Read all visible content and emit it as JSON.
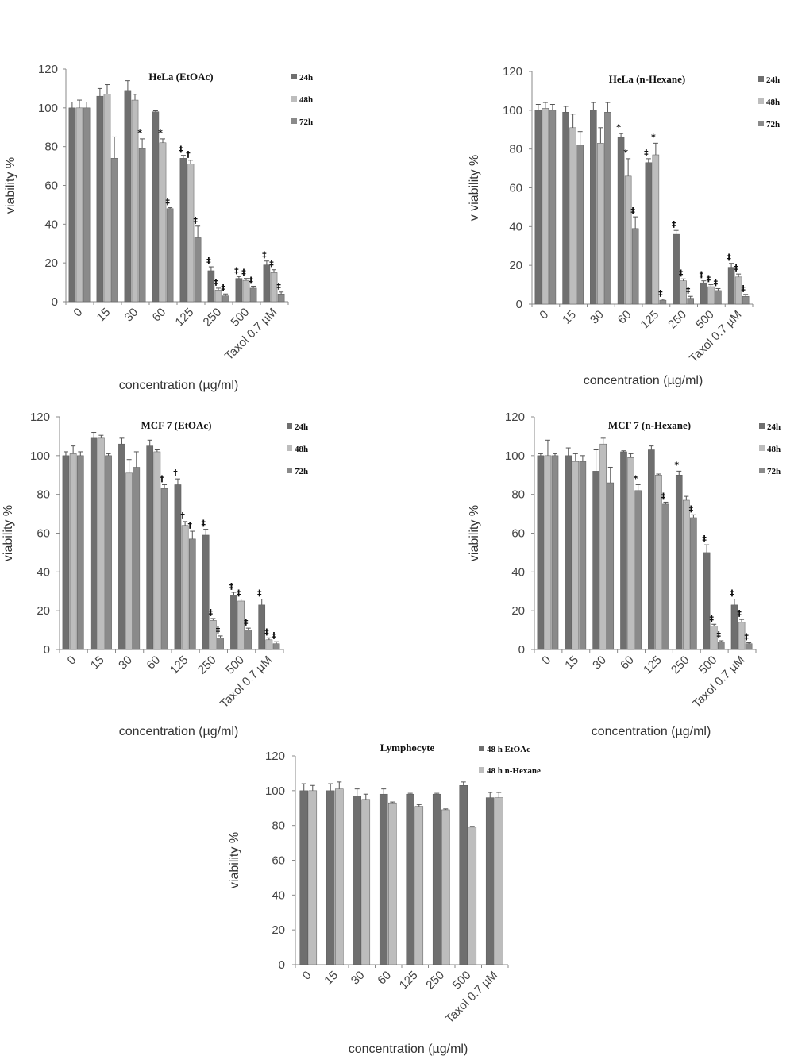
{
  "colors": {
    "24h": "#6f6f6f",
    "48h": "#bdbdbd",
    "72h": "#8a8a8a"
  },
  "chart_data": [
    {
      "type": "bar",
      "title": "HeLa (EtOAc)",
      "xlabel": "concentration (µg/ml)",
      "ylabel": "viability %",
      "ylim": [
        0,
        120
      ],
      "yticks": [
        0,
        20,
        40,
        60,
        80,
        100,
        120
      ],
      "categories": [
        "0",
        "15",
        "30",
        "60",
        "125",
        "250",
        "500",
        "Taxol 0.7 µM"
      ],
      "legend": "top-right",
      "series": [
        {
          "name": "24h",
          "color_key": "24h",
          "values": [
            100,
            106,
            109,
            98,
            74,
            16,
            12,
            19
          ],
          "errors": [
            3,
            4,
            5,
            0.5,
            1.5,
            2,
            1,
            2
          ],
          "marks": [
            "",
            "",
            "",
            "",
            "‡",
            "‡",
            "‡",
            "‡"
          ]
        },
        {
          "name": "48h",
          "color_key": "48h",
          "values": [
            100,
            107,
            104,
            82,
            71,
            6,
            11,
            15
          ],
          "errors": [
            4,
            5,
            3,
            2,
            2,
            1,
            1,
            1.5
          ],
          "marks": [
            "",
            "",
            "",
            "*",
            "†",
            "‡",
            "‡",
            "‡"
          ]
        },
        {
          "name": "72h",
          "color_key": "72h",
          "values": [
            100,
            74,
            79,
            48,
            33,
            3,
            7,
            4
          ],
          "errors": [
            3,
            11,
            5,
            0.5,
            6,
            1,
            1,
            1
          ],
          "marks": [
            "",
            "",
            "*",
            "‡",
            "‡",
            "‡",
            "‡",
            "‡"
          ]
        }
      ]
    },
    {
      "type": "bar",
      "title": "HeLa (n-Hexane)",
      "xlabel": "concentration (µg/ml)",
      "ylabel": "v viability %",
      "ylim": [
        0,
        120
      ],
      "yticks": [
        0,
        20,
        40,
        60,
        80,
        100,
        120
      ],
      "categories": [
        "0",
        "15",
        "30",
        "60",
        "125",
        "250",
        "500",
        "Taxol 0.7 µM"
      ],
      "legend": "top-right",
      "series": [
        {
          "name": "24h",
          "color_key": "24h",
          "values": [
            100,
            99,
            100,
            86,
            73,
            36,
            11,
            19
          ],
          "errors": [
            3,
            3,
            4,
            2,
            2,
            2,
            1,
            2
          ],
          "marks": [
            "",
            "",
            "",
            "*",
            "‡",
            "‡",
            "‡",
            "‡"
          ]
        },
        {
          "name": "48h",
          "color_key": "48h",
          "values": [
            101,
            91,
            83,
            66,
            77,
            12,
            9,
            14
          ],
          "errors": [
            3,
            7,
            8,
            9,
            6,
            1,
            1,
            1.5
          ],
          "marks": [
            "",
            "",
            "",
            "*",
            "*",
            "‡",
            "‡",
            "‡"
          ]
        },
        {
          "name": "72h",
          "color_key": "72h",
          "values": [
            100,
            82,
            99,
            39,
            2,
            3,
            7,
            4
          ],
          "errors": [
            3,
            7,
            5,
            6,
            0.5,
            1,
            1,
            1
          ],
          "marks": [
            "",
            "",
            "",
            "‡",
            "‡",
            "‡",
            "‡",
            "‡"
          ]
        }
      ]
    },
    {
      "type": "bar",
      "title": "MCF 7 (EtOAc)",
      "xlabel": "concentration (µg/ml)",
      "ylabel": "viability %",
      "ylim": [
        0,
        120
      ],
      "yticks": [
        0,
        20,
        40,
        60,
        80,
        100,
        120
      ],
      "categories": [
        "0",
        "15",
        "30",
        "60",
        "125",
        "250",
        "500",
        "Taxol 0.7 µM"
      ],
      "legend": "top-right",
      "series": [
        {
          "name": "24h",
          "color_key": "24h",
          "values": [
            100,
            109,
            106,
            105,
            85,
            59,
            28,
            23
          ],
          "errors": [
            2,
            3,
            3,
            3,
            3,
            3,
            1.5,
            3
          ],
          "marks": [
            "",
            "",
            "",
            "",
            "†",
            "‡",
            "‡",
            "‡"
          ]
        },
        {
          "name": "48h",
          "color_key": "48h",
          "values": [
            101,
            109,
            91,
            102,
            64,
            15,
            25,
            5
          ],
          "errors": [
            4,
            1.5,
            7,
            1,
            2,
            1,
            1,
            1
          ],
          "marks": [
            "",
            "",
            "",
            "",
            "†",
            "‡",
            "‡",
            "‡"
          ]
        },
        {
          "name": "72h",
          "color_key": "72h",
          "values": [
            100,
            100,
            94,
            83,
            57,
            6,
            10,
            3
          ],
          "errors": [
            2,
            1,
            8,
            2,
            4,
            1,
            1,
            1
          ],
          "marks": [
            "",
            "",
            "",
            "†",
            "†",
            "‡",
            "‡",
            "‡"
          ]
        }
      ]
    },
    {
      "type": "bar",
      "title": "MCF 7 (n-Hexane)",
      "xlabel": "concentration (µg/ml)",
      "ylabel": "viability %",
      "ylim": [
        0,
        120
      ],
      "yticks": [
        0,
        20,
        40,
        60,
        80,
        100,
        120
      ],
      "categories": [
        "0",
        "15",
        "30",
        "60",
        "125",
        "250",
        "500",
        "Taxol 0.7 µM"
      ],
      "legend": "top-right",
      "series": [
        {
          "name": "24h",
          "color_key": "24h",
          "values": [
            100,
            100,
            92,
            102,
            103,
            90,
            50,
            23
          ],
          "errors": [
            1,
            4,
            11,
            0.5,
            2,
            2,
            4,
            3
          ],
          "marks": [
            "",
            "",
            "",
            "",
            "",
            "*",
            "‡",
            "‡"
          ]
        },
        {
          "name": "48h",
          "color_key": "48h",
          "values": [
            100,
            97,
            106,
            99,
            90,
            77,
            12,
            14
          ],
          "errors": [
            8,
            4,
            3,
            2,
            0.5,
            2,
            1,
            1.5
          ],
          "marks": [
            "",
            "",
            "",
            "",
            "",
            "",
            "‡",
            "‡"
          ]
        },
        {
          "name": "72h",
          "color_key": "72h",
          "values": [
            100,
            97,
            86,
            82,
            75,
            68,
            4,
            3
          ],
          "errors": [
            1,
            3,
            8,
            3,
            1,
            1.5,
            0.5,
            0.5
          ],
          "marks": [
            "",
            "",
            "",
            "*",
            "‡",
            "‡",
            "‡",
            "‡"
          ]
        }
      ]
    },
    {
      "type": "bar",
      "title": "Lymphocyte",
      "xlabel": "concentration (µg/ml)",
      "ylabel": "viability %",
      "ylim": [
        0,
        120
      ],
      "yticks": [
        0,
        20,
        40,
        60,
        80,
        100,
        120
      ],
      "categories": [
        "0",
        "15",
        "30",
        "60",
        "125",
        "250",
        "500",
        "Taxol 0.7 µM"
      ],
      "legend": "top-right",
      "series": [
        {
          "name": "48 h EtOAc",
          "color_key": "24h",
          "values": [
            100,
            100,
            97,
            98,
            98,
            98,
            103,
            96
          ],
          "errors": [
            4,
            4,
            4,
            3,
            0.5,
            0.5,
            2,
            3
          ],
          "marks": [
            "",
            "",
            "",
            "",
            "",
            "",
            "",
            ""
          ]
        },
        {
          "name": "48 h n-Hexane",
          "color_key": "48h",
          "values": [
            100,
            101,
            95,
            93,
            91,
            89,
            79,
            96
          ],
          "errors": [
            3,
            4,
            3,
            0.5,
            1,
            0.5,
            0.5,
            3
          ],
          "marks": [
            "",
            "",
            "",
            "",
            "",
            "",
            "",
            ""
          ]
        }
      ]
    }
  ]
}
